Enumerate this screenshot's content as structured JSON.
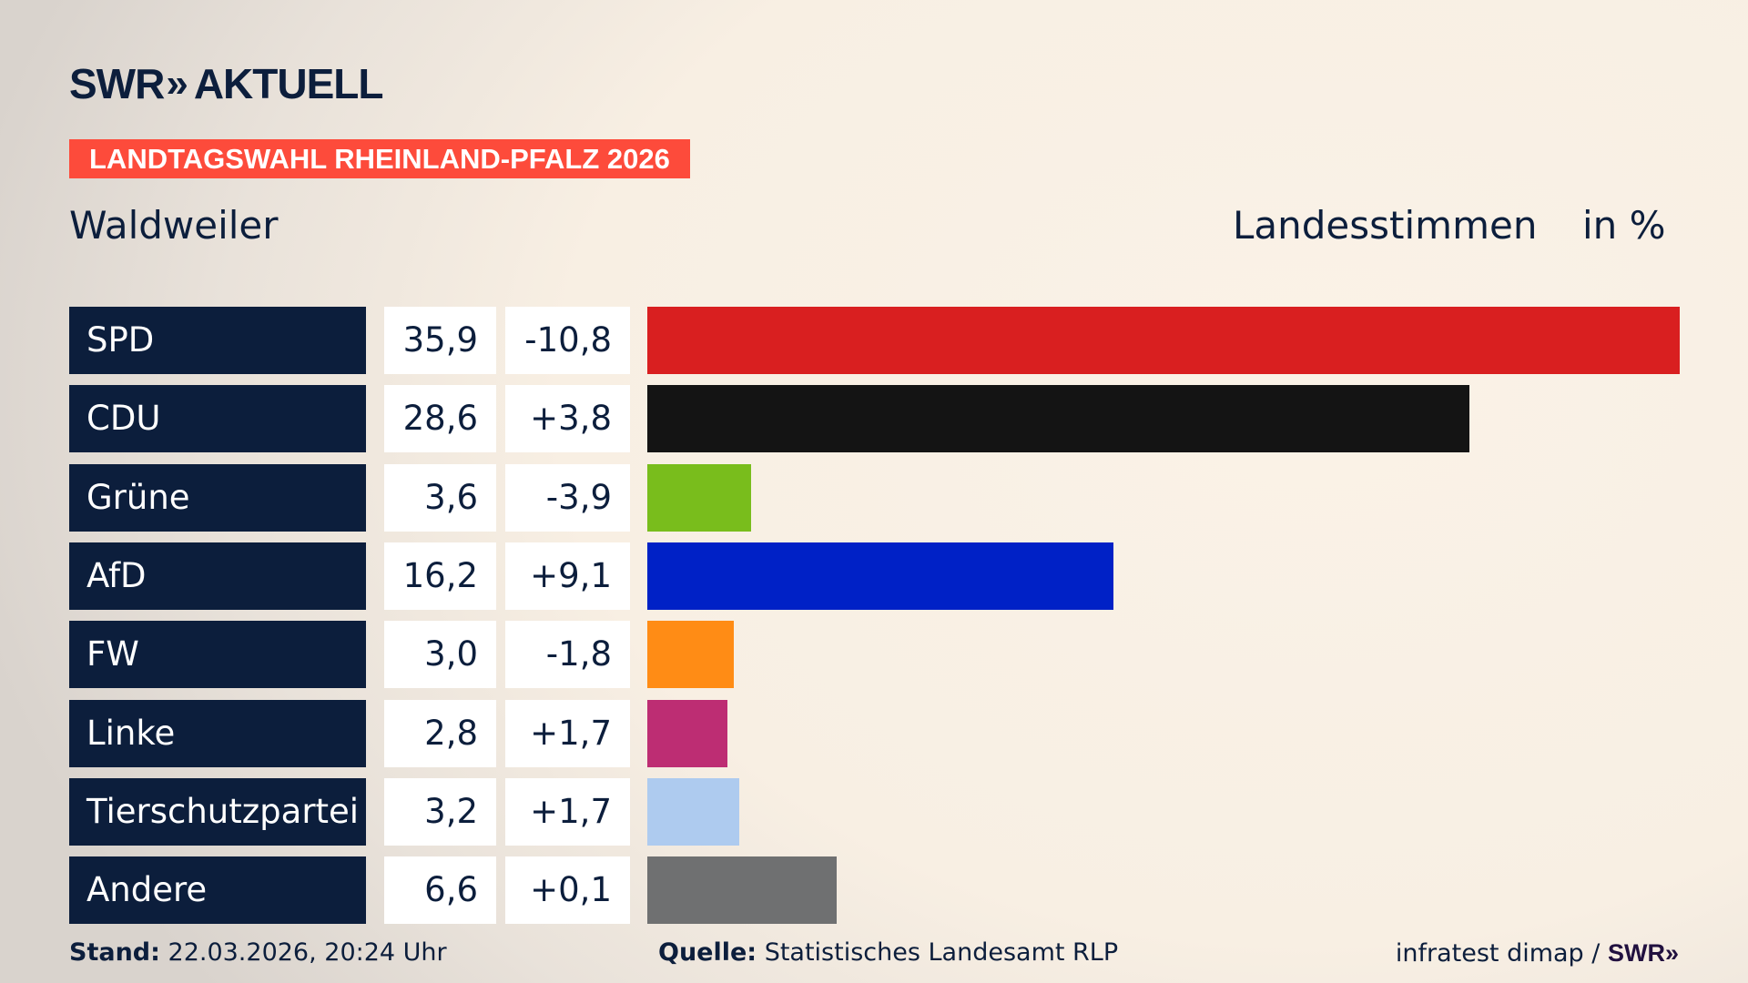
{
  "brand": {
    "logo_text": "SWR",
    "logo_suffix": "AKTUELL",
    "chevron": "»"
  },
  "banner": "LANDTAGSWAHL RHEINLAND-PFALZ 2026",
  "place": "Waldweiler",
  "header": {
    "vote_type": "Landesstimmen",
    "unit": "in %"
  },
  "chart_data": {
    "type": "bar",
    "orientation": "horizontal",
    "categories": [
      "SPD",
      "CDU",
      "Grüne",
      "AfD",
      "FW",
      "Linke",
      "Tierschutzpartei",
      "Andere"
    ],
    "values": [
      35.9,
      28.6,
      3.6,
      16.2,
      3.0,
      2.8,
      3.2,
      6.6
    ],
    "values_label": [
      "35,9",
      "28,6",
      "3,6",
      "16,2",
      "3,0",
      "2,8",
      "3,2",
      "6,6"
    ],
    "diff_label": [
      "-10,8",
      "+3,8",
      "-3,9",
      "+9,1",
      "-1,8",
      "+1,7",
      "+1,7",
      "+0,1"
    ],
    "diff": [
      -10.8,
      3.8,
      -3.9,
      9.1,
      -1.8,
      1.7,
      1.7,
      0.1
    ],
    "colors": [
      "#d91f20",
      "#141414",
      "#79bd1c",
      "#0021c6",
      "#ff8c15",
      "#bd2d73",
      "#aecbef",
      "#6f7071"
    ],
    "unit": "in %",
    "grid": false
  },
  "footer": {
    "stand_label": "Stand:",
    "stand_value": "22.03.2026, 20:24 Uhr",
    "source_label": "Quelle:",
    "source_value": "Statistisches Landesamt RLP",
    "credit": "infratest dimap /",
    "credit_brand": "SWR»"
  }
}
